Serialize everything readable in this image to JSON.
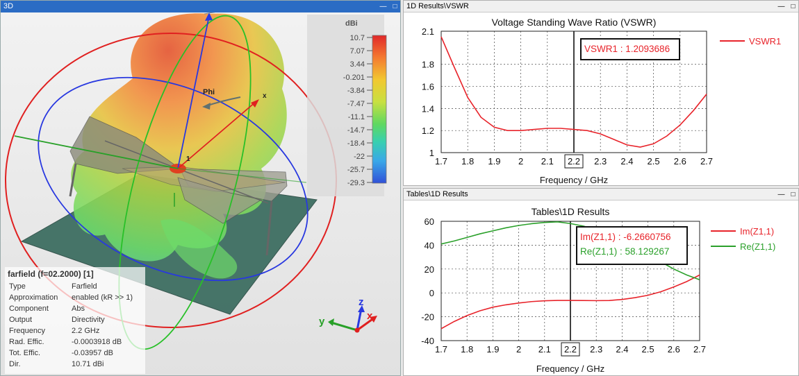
{
  "panel3d": {
    "title": "3D",
    "colorbar": {
      "unit": "dBi",
      "ticks": [
        "10.7",
        "7.07",
        "3.44",
        "-0.201",
        "-3.84",
        "-7.47",
        "-11.1",
        "-14.7",
        "-18.4",
        "-22",
        "-25.7",
        "-29.3"
      ]
    },
    "labels": {
      "phi": "Phi",
      "x": "x",
      "one": "1"
    },
    "triad": {
      "x": "x",
      "y": "y",
      "z": "z"
    },
    "info": {
      "title": "farfield (f=02.2000) [1]",
      "rows": [
        {
          "k": "Type",
          "v": "Farfield"
        },
        {
          "k": "Approximation",
          "v": "enabled (kR >> 1)"
        },
        {
          "k": "Component",
          "v": "Abs"
        },
        {
          "k": "Output",
          "v": "Directivity"
        },
        {
          "k": "Frequency",
          "v": "2.2 GHz"
        },
        {
          "k": "Rad. Effic.",
          "v": "-0.0003918 dB"
        },
        {
          "k": "Tot. Effic.",
          "v": "-0.03957 dB"
        },
        {
          "k": "Dir.",
          "v": "10.71 dBi"
        }
      ]
    }
  },
  "vswr_panel": {
    "tab_title": "1D Results\\VSWR",
    "marker_label": "VSWR1 : 1.2093686"
  },
  "tables_panel": {
    "tab_title": "Tables\\1D Results",
    "marker_label_1": "Im(Z1,1) : -6.2660756",
    "marker_label_2": "Re(Z1,1) : 58.129267"
  },
  "colors": {
    "red": "#e8232a",
    "green": "#2aa02a",
    "active_title": "#2b6cc4"
  },
  "chart_data": [
    {
      "type": "line",
      "title": "Voltage Standing Wave Ratio (VSWR)",
      "xlabel": "Frequency / GHz",
      "ylabel": "",
      "xlim": [
        1.7,
        2.7
      ],
      "ylim": [
        1,
        2.1
      ],
      "xticks": [
        "1.7",
        "1.8",
        "1.9",
        "2",
        "2.1",
        "2.2",
        "2.3",
        "2.4",
        "2.5",
        "2.6",
        "2.7"
      ],
      "yticks": [
        "1",
        "1.2",
        "1.4",
        "1.6",
        "1.8",
        "2.1"
      ],
      "marker_x": 2.2,
      "marker_x_label": "2.2",
      "grid": true,
      "legend": "right",
      "series": [
        {
          "name": "VSWR1",
          "color": "#e8232a",
          "x": [
            1.7,
            1.75,
            1.8,
            1.85,
            1.9,
            1.95,
            2.0,
            2.05,
            2.1,
            2.15,
            2.2,
            2.25,
            2.3,
            2.35,
            2.4,
            2.45,
            2.5,
            2.55,
            2.6,
            2.65,
            2.7
          ],
          "values": [
            2.05,
            1.77,
            1.5,
            1.32,
            1.23,
            1.2,
            1.2,
            1.21,
            1.22,
            1.22,
            1.21,
            1.2,
            1.17,
            1.12,
            1.07,
            1.05,
            1.08,
            1.15,
            1.25,
            1.38,
            1.53
          ]
        }
      ]
    },
    {
      "type": "line",
      "title": "Tables\\1D Results",
      "xlabel": "Frequency / GHz",
      "ylabel": "",
      "xlim": [
        1.7,
        2.7
      ],
      "ylim": [
        -40,
        60
      ],
      "xticks": [
        "1.7",
        "1.8",
        "1.9",
        "2",
        "2.1",
        "2.2",
        "2.3",
        "2.4",
        "2.5",
        "2.6",
        "2.7"
      ],
      "yticks": [
        "-40",
        "-20",
        "0",
        "20",
        "40",
        "60"
      ],
      "marker_x": 2.2,
      "marker_x_label": "2.2",
      "grid": true,
      "legend": "right",
      "series": [
        {
          "name": "Im(Z1,1)",
          "color": "#e8232a",
          "x": [
            1.7,
            1.75,
            1.8,
            1.85,
            1.9,
            1.95,
            2.0,
            2.05,
            2.1,
            2.15,
            2.2,
            2.25,
            2.3,
            2.35,
            2.4,
            2.45,
            2.5,
            2.55,
            2.6,
            2.65,
            2.7
          ],
          "values": [
            -30,
            -24,
            -19,
            -15,
            -12,
            -10,
            -8.5,
            -7.3,
            -6.6,
            -6.3,
            -6.3,
            -6.4,
            -6.5,
            -6.4,
            -5.5,
            -4,
            -2,
            1,
            5,
            9.5,
            15
          ]
        },
        {
          "name": "Re(Z1,1)",
          "color": "#2aa02a",
          "x": [
            1.7,
            1.75,
            1.8,
            1.85,
            1.9,
            1.95,
            2.0,
            2.05,
            2.1,
            2.15,
            2.2,
            2.25,
            2.3,
            2.35,
            2.4,
            2.45,
            2.5,
            2.55,
            2.6,
            2.65,
            2.7
          ],
          "values": [
            41,
            43.5,
            46.5,
            49.5,
            52,
            54.5,
            56.5,
            58,
            59,
            59.5,
            58.1,
            56,
            53,
            49,
            44,
            38,
            32,
            26,
            20,
            15,
            11
          ]
        }
      ]
    }
  ]
}
